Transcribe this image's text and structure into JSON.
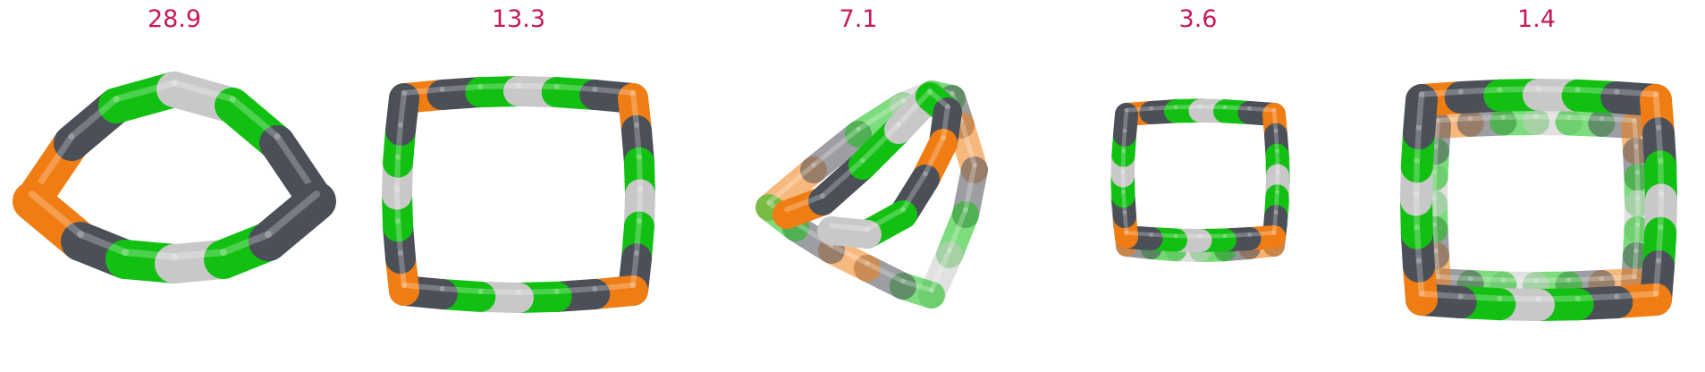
{
  "panels": [
    {
      "label": "28.9"
    },
    {
      "label": "13.3"
    },
    {
      "label": "7.1"
    },
    {
      "label": "3.6"
    },
    {
      "label": "1.4"
    }
  ],
  "colors": {
    "label": "#c8185a",
    "orange": "#f07d14",
    "dark": "#4a4f58",
    "green": "#12c012",
    "light": "#c8c8c8"
  }
}
